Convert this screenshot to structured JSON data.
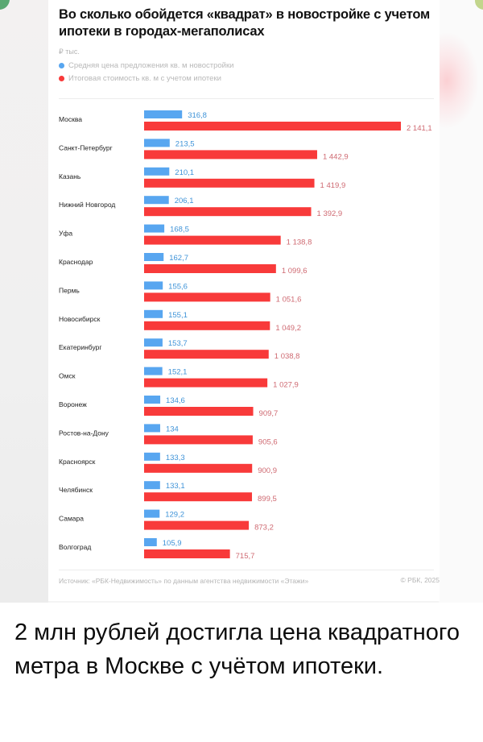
{
  "colors": {
    "blue": "#58a6f0",
    "red": "#f83a3a",
    "blue_text": "#3e93d8",
    "red_text": "#cf6a72"
  },
  "card": {
    "title": "Во сколько обойдется «квадрат» в новостройке с учетом ипотеки в городах-мегаполисах",
    "unit": "₽ тыс.",
    "source": "Источник: «РБК-Недвижимость» по данным агентства недвижимости «Этажи»",
    "copyright": "© РБК, 2025"
  },
  "chart_data": {
    "type": "bar",
    "orientation": "horizontal",
    "title": "Во сколько обойдется «квадрат» в новостройке с учетом ипотеки в городах-мегаполисах",
    "xlabel": "",
    "ylabel": "",
    "unit": "₽ тыс.",
    "xlim": [
      0,
      2141.1
    ],
    "grid": false,
    "legend_position": "top-left",
    "categories": [
      "Москва",
      "Санкт-Петербург",
      "Казань",
      "Нижний Новгород",
      "Уфа",
      "Краснодар",
      "Пермь",
      "Новосибирск",
      "Екатеринбург",
      "Омск",
      "Воронеж",
      "Ростов-на-Дону",
      "Красноярск",
      "Челябинск",
      "Самара",
      "Волгоград"
    ],
    "series": [
      {
        "name": "Средняя цена предложения кв. м новостройки",
        "color": "#58a6f0",
        "values": [
          316.8,
          213.5,
          210.1,
          206.1,
          168.5,
          162.7,
          155.6,
          155.1,
          153.7,
          152.1,
          134.6,
          134,
          133.3,
          133.1,
          129.2,
          105.9
        ],
        "labels": [
          "316,8",
          "213,5",
          "210,1",
          "206,1",
          "168,5",
          "162,7",
          "155,6",
          "155,1",
          "153,7",
          "152,1",
          "134,6",
          "134",
          "133,3",
          "133,1",
          "129,2",
          "105,9"
        ]
      },
      {
        "name": "Итоговая стоимость кв. м с учетом ипотеки",
        "color": "#f83a3a",
        "values": [
          2141.1,
          1442.9,
          1419.9,
          1392.9,
          1138.8,
          1099.6,
          1051.6,
          1049.2,
          1038.8,
          1027.9,
          909.7,
          905.6,
          900.9,
          899.5,
          873.2,
          715.7
        ],
        "labels": [
          "2 141,1",
          "1 442,9",
          "1 419,9",
          "1 392,9",
          "1 138,8",
          "1 099,6",
          "1 051,6",
          "1 049,2",
          "1 038,8",
          "1 027,9",
          "909,7",
          "905,6",
          "900,9",
          "899,5",
          "873,2",
          "715,7"
        ]
      }
    ]
  },
  "headline": "2 млн рублей достигла цена квадратного метра в Москве с учётом ипотеки."
}
